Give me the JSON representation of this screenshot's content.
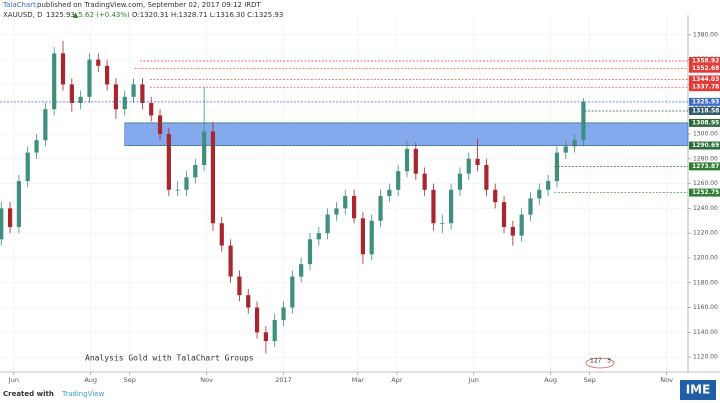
{
  "chart_data": {
    "type": "candlestick",
    "publisher": "TalaChart",
    "title": "published on TradingView.com, September 02, 2017 09:12 IRDT",
    "legend": [
      "XAUUSD, D",
      "1325.93",
      "▲5.62 (+0.43%)",
      "O:1320.31 H:1328.71 L:1316.30 C:1325.93"
    ],
    "annotation": "Analysis Gold with TalaChart Groups",
    "counter": [
      "127",
      "3"
    ],
    "footer": [
      "Created with",
      "TradingView"
    ],
    "logo": "IME",
    "up_color": "#3f8f7f",
    "down_color": "#a8272f",
    "grid": true,
    "x": [
      -10,
      -3,
      4,
      11,
      18,
      25,
      32,
      39,
      46,
      53,
      60,
      67,
      74,
      81,
      88,
      95,
      102,
      109,
      116,
      123,
      130,
      137,
      144,
      151,
      158,
      165,
      172,
      179,
      186,
      193,
      200,
      207,
      214,
      221,
      228,
      235,
      242,
      249,
      256,
      263,
      270,
      277,
      284,
      291,
      298,
      305,
      312,
      319,
      326,
      333,
      340,
      347,
      354,
      361,
      368,
      375,
      382,
      389,
      396,
      403,
      410,
      417,
      424,
      431,
      438,
      445,
      452
    ],
    "open": [
      1215,
      1240,
      1225,
      1262,
      1285,
      1295,
      1320,
      1365,
      1340,
      1325,
      1330,
      1360,
      1355,
      1340,
      1320,
      1330,
      1340,
      1325,
      1315,
      1300,
      1255,
      1255,
      1265,
      1275,
      1302,
      1228,
      1210,
      1185,
      1170,
      1160,
      1140,
      1133,
      1150,
      1160,
      1185,
      1195,
      1215,
      1220,
      1235,
      1240,
      1250,
      1232,
      1203,
      1230,
      1250,
      1255,
      1270,
      1288,
      1268,
      1255,
      1228,
      1228,
      1255,
      1268,
      1280,
      1275,
      1255,
      1245,
      1225,
      1218,
      1235,
      1248,
      1255,
      1262,
      1285,
      1290,
      1295
    ],
    "high": [
      1245,
      1245,
      1267,
      1290,
      1300,
      1325,
      1370,
      1375,
      1345,
      1335,
      1365,
      1365,
      1360,
      1345,
      1335,
      1345,
      1345,
      1330,
      1320,
      1305,
      1262,
      1270,
      1280,
      1338,
      1310,
      1233,
      1215,
      1190,
      1175,
      1165,
      1145,
      1155,
      1165,
      1190,
      1200,
      1220,
      1225,
      1240,
      1245,
      1255,
      1255,
      1237,
      1235,
      1255,
      1260,
      1275,
      1295,
      1293,
      1273,
      1260,
      1235,
      1260,
      1273,
      1285,
      1296,
      1280,
      1260,
      1250,
      1230,
      1240,
      1253,
      1260,
      1267,
      1290,
      1295,
      1300,
      1329
    ],
    "low": [
      1210,
      1220,
      1220,
      1257,
      1280,
      1290,
      1315,
      1335,
      1318,
      1320,
      1325,
      1350,
      1335,
      1312,
      1315,
      1325,
      1320,
      1310,
      1295,
      1250,
      1250,
      1250,
      1260,
      1270,
      1222,
      1205,
      1180,
      1165,
      1155,
      1135,
      1123,
      1128,
      1145,
      1155,
      1180,
      1190,
      1210,
      1215,
      1230,
      1235,
      1228,
      1195,
      1198,
      1225,
      1245,
      1250,
      1265,
      1263,
      1250,
      1222,
      1220,
      1223,
      1250,
      1263,
      1270,
      1250,
      1240,
      1220,
      1210,
      1213,
      1230,
      1243,
      1250,
      1257,
      1280,
      1285,
      1290
    ],
    "close": [
      1240,
      1225,
      1262,
      1285,
      1295,
      1320,
      1365,
      1340,
      1325,
      1330,
      1360,
      1355,
      1340,
      1320,
      1330,
      1340,
      1325,
      1315,
      1300,
      1255,
      1255,
      1265,
      1275,
      1302,
      1228,
      1210,
      1185,
      1170,
      1160,
      1140,
      1133,
      1150,
      1160,
      1185,
      1195,
      1215,
      1220,
      1235,
      1240,
      1250,
      1232,
      1203,
      1230,
      1250,
      1255,
      1270,
      1288,
      1268,
      1255,
      1228,
      1228,
      1255,
      1268,
      1280,
      1275,
      1255,
      1245,
      1225,
      1218,
      1235,
      1248,
      1255,
      1262,
      1285,
      1290,
      1295,
      1326
    ],
    "zone": {
      "low": 1290.69,
      "high": 1308.95,
      "x0": 88,
      "color": "#6f9bea"
    },
    "levels": [
      {
        "value": 1358.92,
        "color": "#e53935",
        "x0": 100
      },
      {
        "value": 1352.68,
        "color": "#e53935",
        "x0": 96
      },
      {
        "value": 1344.03,
        "color": "#e53935",
        "x0": 108
      },
      {
        "value": 1337.78,
        "color": "#e53935",
        "x0": 108
      },
      {
        "value": 1325.93,
        "color": "#3d6ccc",
        "x0": -11
      },
      {
        "value": 1318.58,
        "color": "#2c5a66",
        "x0": 453
      },
      {
        "value": 1308.95,
        "color": "#2e6b3a",
        "x0": 88
      },
      {
        "value": 1290.69,
        "color": "#2e6b3a",
        "x0": 88
      },
      {
        "value": 1273.87,
        "color": "#2e7d32",
        "x0": 429
      },
      {
        "value": 1252.75,
        "color": "#2e7d32",
        "x0": 429
      }
    ],
    "xlim": [
      -11,
      535
    ],
    "xticks": [
      {
        "value": 0,
        "label": "Jun"
      },
      {
        "value": 61,
        "label": "Aug"
      },
      {
        "value": 92,
        "label": "Sep"
      },
      {
        "value": 153,
        "label": "Nov"
      },
      {
        "value": 214,
        "label": "2017"
      },
      {
        "value": 273,
        "label": "Mar"
      },
      {
        "value": 304,
        "label": "Apr"
      },
      {
        "value": 365,
        "label": "Jun"
      },
      {
        "value": 426,
        "label": "Aug"
      },
      {
        "value": 457,
        "label": "Sep"
      },
      {
        "value": 518,
        "label": "Nov"
      }
    ],
    "ylim": [
      1108,
      1396
    ],
    "yticks": [
      {
        "value": 1120,
        "label": "1120.00"
      },
      {
        "value": 1140,
        "label": "1140.00"
      },
      {
        "value": 1160,
        "label": "1160.00"
      },
      {
        "value": 1180,
        "label": "1180.00"
      },
      {
        "value": 1200,
        "label": "1200.00"
      },
      {
        "value": 1220,
        "label": "1220.00"
      },
      {
        "value": 1240,
        "label": "1240.00"
      },
      {
        "value": 1260,
        "label": "1260.00"
      },
      {
        "value": 1280,
        "label": "1280.00"
      },
      {
        "value": 1300,
        "label": "1300.00"
      },
      {
        "value": 1320,
        "label": "1320.00"
      },
      {
        "value": 1340,
        "label": "1340.00"
      },
      {
        "value": 1360,
        "label": "1360.00"
      },
      {
        "value": 1380,
        "label": "1380.00"
      }
    ]
  }
}
